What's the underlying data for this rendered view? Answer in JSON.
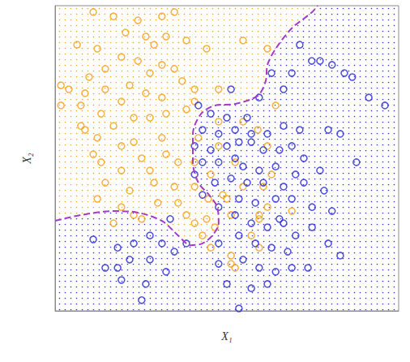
{
  "chart_data": {
    "type": "scatter",
    "x_label": "X₁",
    "y_label": "X₂",
    "xlim": [
      0,
      100
    ],
    "ylim": [
      0,
      100
    ],
    "tick_labels": false,
    "series": [
      {
        "type": "scatter",
        "color": "#f5a31a",
        "marker": "circle",
        "x": [
          11.1,
          17.0,
          24.1,
          31.1,
          34.7,
          20.5,
          26.4,
          32.3,
          28.8,
          38.2,
          44.1,
          12.3,
          19.3,
          24.1,
          31.1,
          14.6,
          9.9,
          27.6,
          34.7,
          37.0,
          21.7,
          26.4,
          14.6,
          19.3,
          31.1,
          40.6,
          1.7,
          7.5,
          7.5,
          8.7,
          12.3,
          17.0,
          22.9,
          27.6,
          32.3,
          38.2,
          40.6,
          11.1,
          13.4,
          19.3,
          22.9,
          25.2,
          19.3,
          27.6,
          32.3,
          35.8,
          28.8,
          34.7,
          40.6,
          21.7,
          14.6,
          12.3,
          19.3,
          29.9,
          35.8,
          38.2,
          44.1,
          40.6,
          42.9,
          45.3,
          46.5,
          51.2,
          59.4,
          59.4,
          51.2,
          52.4,
          51.2,
          60.6,
          63.0,
          61.8,
          47.6,
          54.7,
          59.0,
          54.7,
          61.8,
          47.6,
          64.2,
          22.9,
          25.2,
          17.0,
          4.0,
          8.7,
          1.7,
          6.4,
          41.7,
          44.6,
          48.8,
          50.0,
          59.4,
          61.8,
          68.9,
          52.4,
          45.3,
          40.6,
          54.7,
          57.1,
          47.6,
          31.1,
          13.4
        ],
        "y": [
          97.9,
          96.5,
          95.2,
          96.5,
          97.9,
          91.2,
          89.9,
          89.9,
          87.2,
          88.6,
          85.9,
          85.9,
          83.2,
          81.9,
          80.6,
          79.3,
          76.6,
          77.9,
          79.3,
          75.3,
          73.9,
          71.3,
          72.6,
          68.6,
          69.9,
          72.6,
          67.3,
          67.3,
          60.6,
          59.3,
          56.7,
          60.6,
          63.3,
          63.3,
          64.6,
          66.0,
          68.6,
          51.3,
          48.7,
          54.0,
          55.3,
          50.0,
          46.0,
          46.0,
          51.3,
          48.7,
          42.0,
          40.7,
          40.7,
          39.4,
          42.0,
          36.7,
          34.0,
          35.4,
          35.4,
          31.4,
          30.1,
          28.7,
          24.7,
          20.7,
          27.4,
          31.4,
          31.4,
          20.7,
          15.4,
          14.1,
          18.1,
          40.7,
          44.7,
          54.0,
          62.0,
          62.0,
          59.3,
          88.6,
          85.9,
          72.6,
          67.3,
          31.4,
          30.1,
          28.7,
          72.6,
          71.3,
          73.9,
          87.2,
          56.7,
          36.7,
          38.0,
          36.7,
          30.1,
          34.0,
          32.7,
          48.7,
          44.7,
          48.7,
          40.7,
          24.7,
          54.0,
          56.7,
          64.6
        ]
      },
      {
        "type": "scatter",
        "color": "#2a2ad6",
        "marker": "circle",
        "x": [
          77.1,
          80.6,
          84.2,
          86.5,
          74.7,
          91.3,
          96.0,
          79.5,
          83.0,
          87.7,
          71.2,
          63.0,
          68.9,
          66.5,
          59.4,
          51.2,
          41.7,
          45.3,
          50.0,
          55.9,
          42.9,
          47.6,
          52.4,
          57.1,
          61.8,
          66.5,
          71.2,
          40.6,
          45.3,
          50.0,
          53.5,
          57.1,
          60.6,
          65.3,
          68.9,
          72.4,
          42.9,
          47.6,
          52.4,
          54.7,
          59.4,
          64.2,
          70.0,
          77.1,
          40.6,
          46.5,
          51.2,
          55.9,
          60.6,
          66.5,
          72.4,
          78.3,
          42.9,
          47.6,
          53.5,
          58.3,
          64.2,
          68.9,
          74.8,
          80.6,
          52.4,
          57.1,
          61.8,
          66.5,
          70.0,
          74.8,
          79.5,
          83.0,
          47.6,
          53.5,
          58.3,
          63.0,
          67.7,
          54.7,
          59.4,
          64.2,
          68.9,
          73.6,
          50.0,
          57.1,
          61.8,
          53.5,
          18.2,
          22.9,
          27.6,
          31.1,
          34.7,
          27.6,
          21.7,
          14.6,
          19.3,
          26.4,
          32.3,
          38.2,
          33.5,
          11.1,
          18.2,
          25.2,
          65.3,
          47.6
        ],
        "y": [
          81.9,
          80.6,
          77.9,
          76.6,
          81.9,
          69.9,
          67.3,
          59.3,
          58.0,
          48.7,
          87.2,
          77.9,
          77.9,
          72.6,
          69.9,
          72.6,
          67.3,
          64.6,
          63.3,
          63.3,
          59.3,
          58.0,
          59.3,
          58.0,
          58.0,
          60.6,
          59.3,
          54.0,
          52.7,
          54.0,
          55.3,
          55.3,
          52.7,
          52.7,
          54.0,
          50.0,
          48.7,
          48.7,
          50.0,
          47.3,
          46.0,
          47.3,
          44.7,
          46.0,
          44.7,
          42.0,
          43.4,
          42.0,
          42.0,
          40.7,
          42.0,
          39.4,
          38.0,
          34.0,
          36.7,
          35.4,
          36.7,
          36.7,
          34.0,
          32.7,
          31.4,
          28.7,
          27.4,
          28.7,
          24.7,
          27.4,
          22.1,
          18.1,
          22.1,
          24.7,
          22.1,
          20.7,
          19.4,
          16.8,
          14.1,
          12.8,
          14.1,
          14.1,
          8.8,
          7.4,
          8.8,
          0.8,
          20.7,
          22.1,
          24.7,
          22.1,
          19.4,
          16.8,
          16.8,
          14.1,
          10.1,
          8.8,
          12.8,
          22.1,
          30.1,
          23.4,
          14.1,
          3.5,
          30.1,
          15.4
        ]
      },
      {
        "type": "line",
        "color": "#a43cc8",
        "line_style": "dashed",
        "x": [
          0,
          7.5,
          17.0,
          24.1,
          31.1,
          35.8,
          39.4,
          42.9,
          45.8,
          47.6,
          47.2,
          44.8,
          41.7,
          40.1,
          40.1,
          42.5,
          46.5,
          52.4,
          59.0,
          61.3,
          61.8,
          64.2,
          68.9,
          74.8,
          76.4
        ],
        "y": [
          29.5,
          31.4,
          32.7,
          32.2,
          29.5,
          24.7,
          21.5,
          22.1,
          24.7,
          28.7,
          34.0,
          38.0,
          42.0,
          48.7,
          58.0,
          64.6,
          67.3,
          67.8,
          70.5,
          75.3,
          80.6,
          85.9,
          92.6,
          97.9,
          100
        ]
      }
    ]
  }
}
